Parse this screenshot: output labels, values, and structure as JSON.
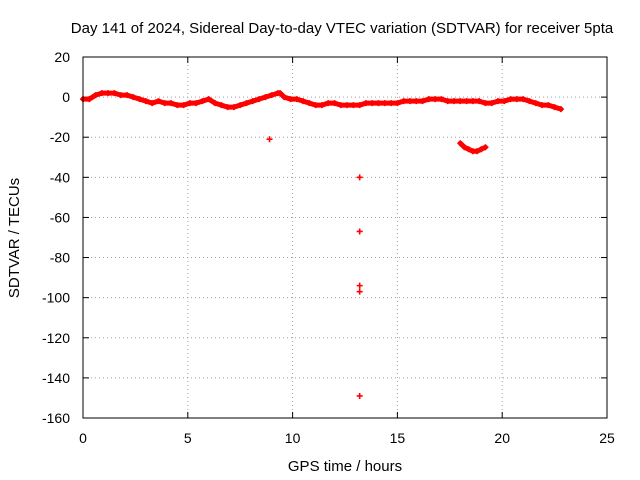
{
  "chart_data": {
    "type": "scatter",
    "title": "Day 141 of 2024, Sidereal Day-to-day VTEC variation (SDTVAR) for receiver 5pta",
    "xlabel": "GPS time / hours",
    "ylabel": "SDTVAR / TECUs",
    "xlim": [
      0,
      25
    ],
    "ylim": [
      -160,
      20
    ],
    "xticks": [
      0,
      5,
      10,
      15,
      20,
      25
    ],
    "yticks": [
      20,
      0,
      -20,
      -40,
      -60,
      -80,
      -100,
      -120,
      -140,
      -160
    ],
    "grid": true,
    "marker": "+",
    "color": "#ff0000",
    "series": [
      {
        "name": "SDTVAR",
        "x": [
          0.0,
          0.3,
          0.6,
          0.9,
          1.2,
          1.5,
          1.8,
          2.1,
          2.4,
          2.7,
          3.0,
          3.3,
          3.6,
          3.9,
          4.2,
          4.5,
          4.8,
          5.1,
          5.4,
          5.7,
          6.0,
          6.3,
          6.6,
          6.9,
          7.2,
          7.5,
          7.8,
          8.1,
          8.4,
          8.7,
          9.0,
          9.3,
          9.4,
          9.6,
          9.9,
          10.2,
          10.5,
          10.8,
          11.1,
          11.4,
          11.7,
          12.0,
          12.3,
          12.6,
          12.9,
          13.2,
          13.5,
          13.8,
          14.1,
          14.4,
          14.7,
          15.0,
          15.3,
          15.6,
          15.9,
          16.2,
          16.5,
          16.8,
          17.1,
          17.4,
          17.7,
          18.0,
          18.3,
          18.6,
          18.9,
          19.2,
          19.5,
          19.8,
          20.1,
          20.4,
          20.7,
          21.0,
          21.3,
          21.6,
          21.9,
          22.2,
          22.5,
          22.8,
          8.9,
          18.0,
          18.2,
          18.4,
          18.6,
          18.8,
          19.0,
          19.2,
          13.2,
          13.2,
          13.2,
          13.2,
          13.2
        ],
        "y": [
          -1,
          -1,
          1,
          2,
          2,
          2,
          1,
          1,
          0,
          -1,
          -2,
          -3,
          -2,
          -3,
          -3,
          -4,
          -4,
          -3,
          -3,
          -2,
          -1,
          -3,
          -4,
          -5,
          -5,
          -4,
          -3,
          -2,
          -1,
          0,
          1,
          2,
          2,
          0,
          -1,
          -1,
          -2,
          -3,
          -4,
          -4,
          -3,
          -3,
          -4,
          -4,
          -4,
          -4,
          -3,
          -3,
          -3,
          -3,
          -3,
          -3,
          -2,
          -2,
          -2,
          -2,
          -1,
          -1,
          -1,
          -2,
          -2,
          -2,
          -2,
          -2,
          -2,
          -3,
          -3,
          -2,
          -2,
          -1,
          -1,
          -1,
          -2,
          -3,
          -4,
          -4,
          -5,
          -6,
          -21,
          -23,
          -25,
          -26,
          -27,
          -27,
          -26,
          -25,
          -40,
          -67,
          -94,
          -97,
          -149
        ]
      }
    ]
  }
}
